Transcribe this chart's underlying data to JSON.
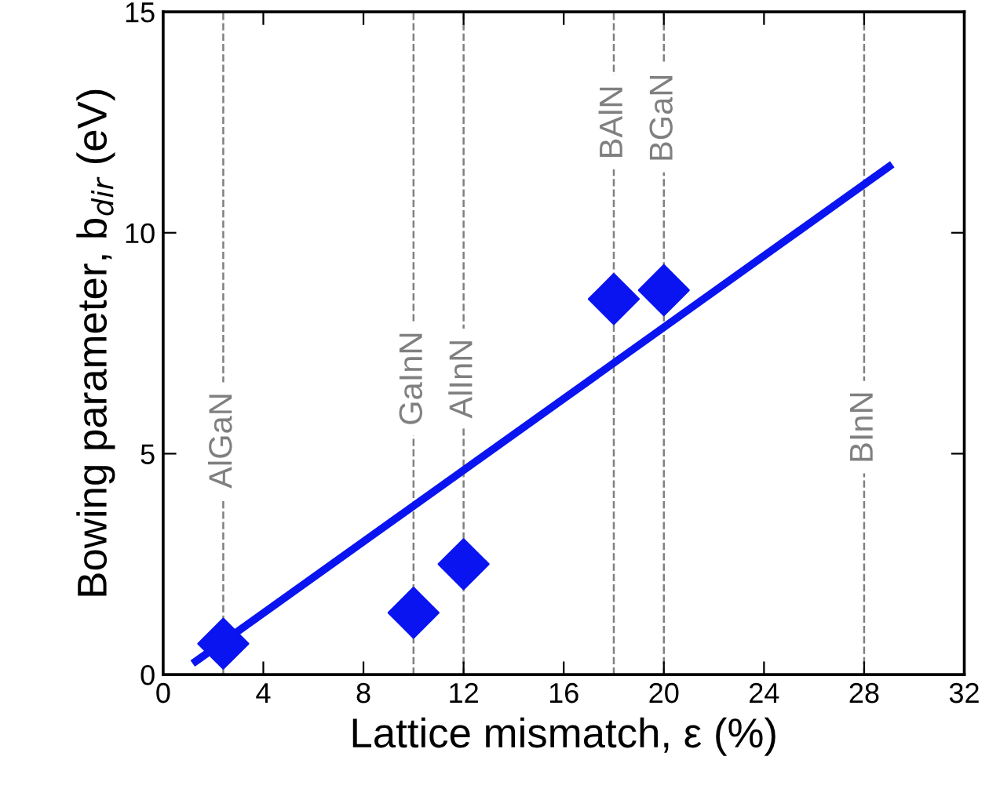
{
  "chart_data": {
    "type": "scatter",
    "xlabel": "Lattice mismatch, ε (%)",
    "ylabel": "Bowing parameter, b$_{dir}$ (eV)",
    "xlim": [
      0,
      32
    ],
    "xticks": [
      0,
      4,
      8,
      12,
      16,
      20,
      24,
      28,
      32
    ],
    "ylim": [
      0,
      15
    ],
    "yticks": [
      0,
      5,
      10,
      15
    ],
    "grid": false,
    "marker": "diamond",
    "series": [
      {
        "color": "#0a14f0",
        "x": [
          2.4,
          10,
          12,
          18,
          20
        ],
        "values": [
          0.7,
          1.4,
          2.5,
          8.5,
          8.7
        ]
      },
      {
        "type": "line",
        "color": "#0a14f0",
        "x": [
          1.3,
          29
        ],
        "values": [
          0.3,
          11.5
        ],
        "marker": "none",
        "line_style": "solid"
      }
    ],
    "ref_lines": [
      {
        "axis": "x",
        "value": 2.4,
        "color": "#808080",
        "line_style": "dashed"
      },
      {
        "axis": "x",
        "value": 10,
        "color": "#808080",
        "line_style": "dashed"
      },
      {
        "axis": "x",
        "value": 12,
        "color": "#808080",
        "line_style": "dashed"
      },
      {
        "axis": "x",
        "value": 18,
        "color": "#808080",
        "line_style": "dashed"
      },
      {
        "axis": "x",
        "value": 20,
        "color": "#808080",
        "line_style": "dashed"
      },
      {
        "axis": "x",
        "value": 28,
        "color": "#808080",
        "line_style": "dashed"
      }
    ],
    "annotations": [
      {
        "text": "AlGaN",
        "x": 2.4,
        "y": 5.3
      },
      {
        "text": "GaInN",
        "x": 10,
        "y": 6.7
      },
      {
        "text": "AlInN",
        "x": 12,
        "y": 6.7
      },
      {
        "text": "BAlN",
        "x": 18,
        "y": 12.5
      },
      {
        "text": "BGaN",
        "x": 20,
        "y": 12.6
      },
      {
        "text": "BInN",
        "x": 28,
        "y": 5.6
      }
    ]
  }
}
